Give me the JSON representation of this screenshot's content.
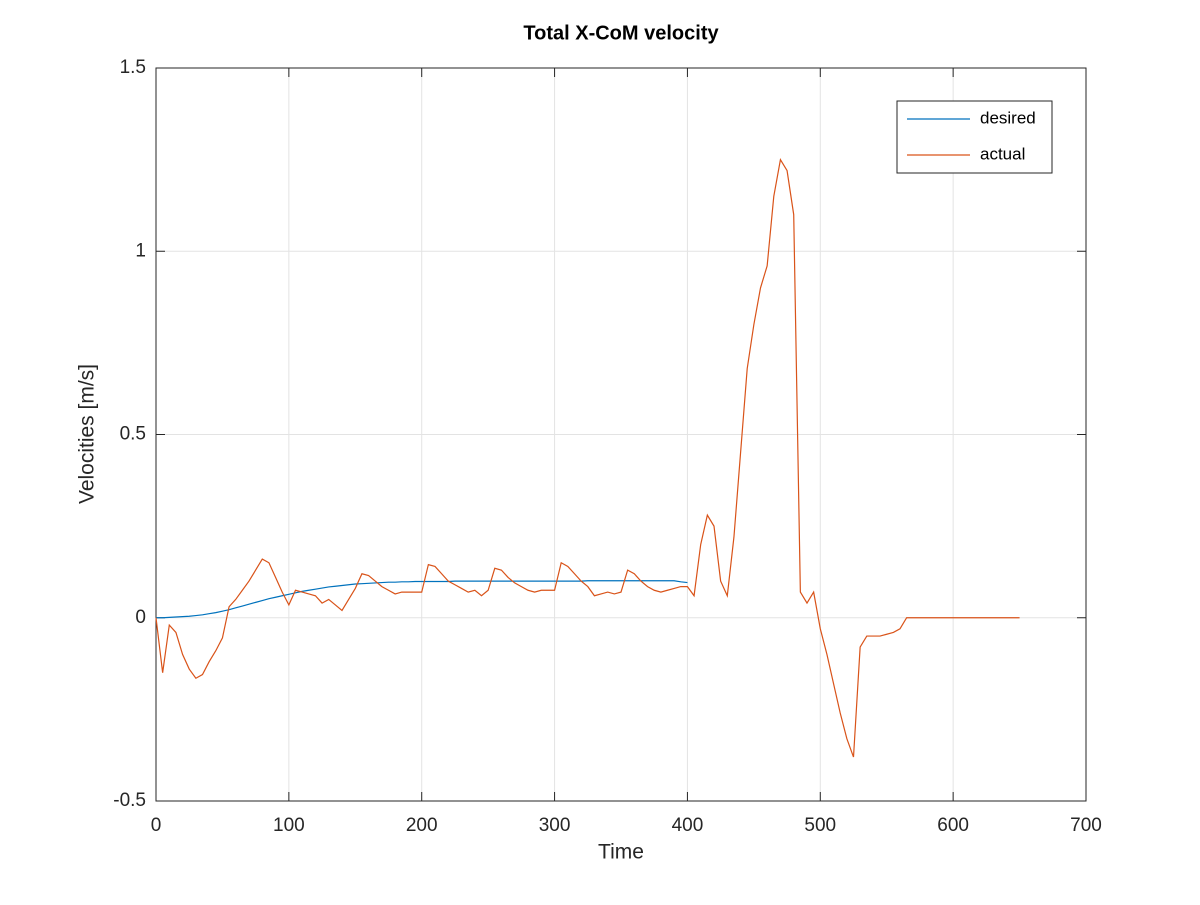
{
  "chart_data": {
    "type": "line",
    "title": "Total X-CoM velocity",
    "x_label": "Time",
    "y_label": "Velocities [m/s]",
    "x": [
      0,
      5,
      10,
      15,
      20,
      25,
      30,
      35,
      40,
      45,
      50,
      55,
      60,
      65,
      70,
      75,
      80,
      85,
      90,
      95,
      100,
      105,
      110,
      115,
      120,
      125,
      130,
      135,
      140,
      145,
      150,
      155,
      160,
      165,
      170,
      175,
      180,
      185,
      190,
      195,
      200,
      205,
      210,
      215,
      220,
      225,
      230,
      235,
      240,
      245,
      250,
      255,
      260,
      265,
      270,
      275,
      280,
      285,
      290,
      295,
      300,
      305,
      310,
      315,
      320,
      325,
      330,
      335,
      340,
      345,
      350,
      355,
      360,
      365,
      370,
      375,
      380,
      385,
      390,
      395,
      400,
      405,
      410,
      415,
      420,
      425,
      430,
      435,
      440,
      445,
      450,
      455,
      460,
      465,
      470,
      475,
      480,
      485,
      490,
      495,
      500,
      505,
      510,
      515,
      520,
      525,
      530,
      535,
      540,
      545,
      550,
      555,
      560,
      565,
      570,
      575,
      580,
      585,
      590,
      595,
      600,
      605,
      610,
      615,
      620,
      625,
      630,
      635,
      640,
      645,
      650
    ],
    "series": [
      {
        "name": "desired",
        "color": "#0072BD",
        "values": [
          0,
          0,
          0.001,
          0.002,
          0.003,
          0.004,
          0.006,
          0.008,
          0.011,
          0.014,
          0.018,
          0.022,
          0.027,
          0.032,
          0.037,
          0.042,
          0.047,
          0.052,
          0.056,
          0.06,
          0.064,
          0.068,
          0.072,
          0.075,
          0.078,
          0.081,
          0.084,
          0.086,
          0.088,
          0.09,
          0.092,
          0.093,
          0.094,
          0.095,
          0.096,
          0.097,
          0.097,
          0.098,
          0.098,
          0.099,
          0.099,
          0.099,
          0.099,
          0.099,
          0.099,
          0.1,
          0.1,
          0.1,
          0.1,
          0.1,
          0.1,
          0.1,
          0.1,
          0.1,
          0.1,
          0.1,
          0.1,
          0.1,
          0.1,
          0.1,
          0.1,
          0.1,
          0.1,
          0.1,
          0.1,
          0.101,
          0.101,
          0.101,
          0.101,
          0.101,
          0.101,
          0.101,
          0.101,
          0.101,
          0.101,
          0.101,
          0.101,
          0.101,
          0.101,
          0.098,
          0.096,
          null,
          null,
          null,
          null,
          null,
          null,
          null,
          null,
          null,
          null,
          null,
          null,
          null,
          null,
          null,
          null,
          null,
          null,
          null,
          null,
          null,
          null,
          null,
          null,
          null,
          null,
          null,
          null,
          null,
          null,
          null,
          null,
          null,
          null,
          null,
          null,
          null,
          null,
          null,
          null,
          null,
          null,
          null,
          null,
          null,
          null,
          null,
          null,
          null,
          null
        ]
      },
      {
        "name": "actual",
        "color": "#D95319",
        "values": [
          0,
          -0.15,
          -0.02,
          -0.04,
          -0.1,
          -0.14,
          -0.165,
          -0.155,
          -0.12,
          -0.09,
          -0.055,
          0.03,
          0.05,
          0.075,
          0.1,
          0.13,
          0.16,
          0.15,
          0.11,
          0.07,
          0.035,
          0.075,
          0.07,
          0.065,
          0.06,
          0.04,
          0.05,
          0.035,
          0.02,
          0.05,
          0.08,
          0.12,
          0.115,
          0.1,
          0.085,
          0.075,
          0.065,
          0.07,
          0.07,
          0.07,
          0.07,
          0.145,
          0.14,
          0.12,
          0.1,
          0.09,
          0.08,
          0.07,
          0.075,
          0.06,
          0.075,
          0.135,
          0.13,
          0.11,
          0.095,
          0.085,
          0.075,
          0.07,
          0.075,
          0.075,
          0.075,
          0.15,
          0.14,
          0.12,
          0.1,
          0.085,
          0.06,
          0.065,
          0.07,
          0.065,
          0.07,
          0.13,
          0.12,
          0.1,
          0.085,
          0.075,
          0.07,
          0.075,
          0.08,
          0.085,
          0.085,
          0.06,
          0.2,
          0.28,
          0.25,
          0.1,
          0.06,
          0.22,
          0.45,
          0.68,
          0.8,
          0.9,
          0.96,
          1.15,
          1.25,
          1.22,
          1.1,
          0.07,
          0.04,
          0.07,
          -0.03,
          -0.1,
          -0.18,
          -0.26,
          -0.33,
          -0.38,
          -0.08,
          -0.05,
          -0.05,
          -0.05,
          -0.045,
          -0.04,
          -0.03,
          0,
          0,
          0,
          0,
          0,
          0,
          0,
          0,
          0,
          0,
          0,
          0,
          0,
          0,
          0,
          0,
          0,
          0
        ]
      }
    ],
    "xlim": [
      0,
      700
    ],
    "xticks": [
      0,
      100,
      200,
      300,
      400,
      500,
      600,
      700
    ],
    "ylim": [
      -0.5,
      1.5
    ],
    "yticks": [
      -0.5,
      0,
      0.5,
      1,
      1.5
    ],
    "grid": true,
    "legend": "northeast"
  }
}
